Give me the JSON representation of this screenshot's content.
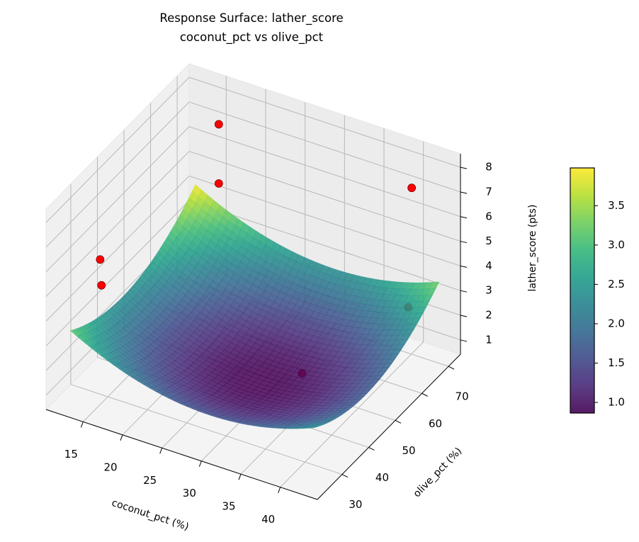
{
  "chart_data": {
    "type": "surface",
    "title": [
      "Response Surface: lather_score",
      "coconut_pct vs olive_pct"
    ],
    "xlabel": "coconut_pct (%)",
    "ylabel": "olive_pct (%)",
    "zlabel": "lather_score (pts)",
    "xlim": [
      10.3,
      44.7
    ],
    "ylim": [
      20.7,
      74.5
    ],
    "zlim": [
      0.42,
      8.55
    ],
    "xticks": [
      15,
      20,
      25,
      30,
      35,
      40
    ],
    "yticks": [
      30,
      40,
      50,
      60,
      70
    ],
    "zticks": [
      1,
      2,
      3,
      4,
      5,
      6,
      7,
      8
    ],
    "grid": true,
    "surface": {
      "model": "quadratic",
      "coefficients": {
        "b0": 9.395,
        "b_x": -0.2935,
        "b_y": -0.1878,
        "b_xx": 0.005027,
        "b_yy": 0.002064
      },
      "x_range": [
        11.6,
        42.5
      ],
      "y_range": [
        26,
        73
      ],
      "colormap": "viridis",
      "alpha": 0.85
    },
    "points": [
      {
        "x": 15,
        "y": 71.7,
        "z": 6.9
      },
      {
        "x": 15,
        "y": 71.7,
        "z": 4.5
      },
      {
        "x": 40,
        "y": 70.1,
        "z": 7.15
      },
      {
        "x": 15,
        "y": 27.1,
        "z": 6.3
      },
      {
        "x": 15,
        "y": 27.6,
        "z": 5.2
      },
      {
        "x": 40,
        "y": 68.8,
        "z": 2.45
      },
      {
        "x": 32,
        "y": 52.6,
        "z": 0.7
      }
    ],
    "point_color": "#ff0000",
    "colorbar": {
      "range": [
        0.865,
        3.98
      ],
      "ticks": [
        "1.0",
        "1.5",
        "2.0",
        "2.5",
        "3.0",
        "3.5"
      ]
    }
  }
}
